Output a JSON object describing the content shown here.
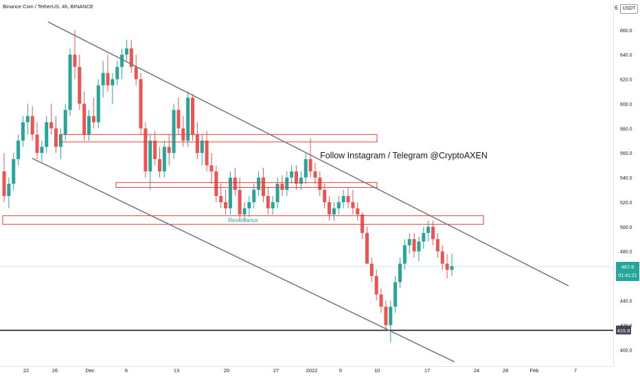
{
  "header": {
    "title": "Binance Coin / TetherUS, 4h, BINANCE",
    "currency": "USDT",
    "corner_glyph": "6"
  },
  "chart_data": {
    "type": "candlestick",
    "y_axis": {
      "ticks": [
        "400.0",
        "420.0",
        "440.0",
        "460.0",
        "480.0",
        "500.0",
        "520.0",
        "540.0",
        "560.0",
        "580.0",
        "600.0",
        "620.0",
        "640.0",
        "660.0"
      ],
      "range": [
        389,
        666
      ]
    },
    "x_axis": {
      "ticks": [
        "22",
        "26",
        "Dec",
        "6",
        "13",
        "20",
        "27",
        "2022",
        "5",
        "10",
        "17",
        "24",
        "28",
        "Feb",
        "7"
      ]
    },
    "annotation_text": "Follow Instagram / Telegram @CryptoAXEN",
    "zone_label": "Ressistance",
    "zones": [
      {
        "from": 569,
        "to": 575
      },
      {
        "from": 532,
        "to": 536
      },
      {
        "from": 502,
        "to": 509
      }
    ],
    "horizontal_level": 415.8,
    "trend_lines": [
      {
        "from": [
          "23 Nov",
          670
        ],
        "to": [
          "24 Jan",
          447
        ]
      },
      {
        "from": [
          "26 Nov",
          552
        ],
        "to": [
          "15 Jan",
          400
        ]
      }
    ],
    "price_labels": {
      "last_price": "467.6",
      "countdown": "01:41:21",
      "level_label": "415.8"
    },
    "candles_ohlc_approx": [
      [
        545,
        560,
        520,
        525
      ],
      [
        525,
        540,
        515,
        535
      ],
      [
        535,
        560,
        530,
        555
      ],
      [
        555,
        575,
        550,
        570
      ],
      [
        570,
        590,
        565,
        585
      ],
      [
        585,
        600,
        575,
        590
      ],
      [
        590,
        598,
        570,
        575
      ],
      [
        575,
        585,
        555,
        560
      ],
      [
        560,
        570,
        553,
        565
      ],
      [
        565,
        590,
        560,
        585
      ],
      [
        585,
        600,
        575,
        580
      ],
      [
        580,
        590,
        560,
        565
      ],
      [
        565,
        580,
        555,
        575
      ],
      [
        575,
        600,
        570,
        595
      ],
      [
        595,
        645,
        590,
        640
      ],
      [
        640,
        660,
        620,
        630
      ],
      [
        630,
        640,
        595,
        600
      ],
      [
        600,
        610,
        570,
        575
      ],
      [
        575,
        595,
        570,
        590
      ],
      [
        590,
        605,
        580,
        585
      ],
      [
        585,
        620,
        580,
        615
      ],
      [
        615,
        635,
        605,
        625
      ],
      [
        625,
        640,
        610,
        615
      ],
      [
        615,
        625,
        600,
        620
      ],
      [
        620,
        635,
        615,
        630
      ],
      [
        630,
        645,
        620,
        640
      ],
      [
        640,
        652,
        635,
        645
      ],
      [
        645,
        652,
        625,
        630
      ],
      [
        630,
        640,
        615,
        620
      ],
      [
        620,
        625,
        575,
        580
      ],
      [
        580,
        585,
        540,
        545
      ],
      [
        545,
        575,
        530,
        570
      ],
      [
        570,
        578,
        550,
        555
      ],
      [
        555,
        565,
        540,
        545
      ],
      [
        545,
        570,
        540,
        565
      ],
      [
        565,
        575,
        550,
        560
      ],
      [
        560,
        600,
        555,
        595
      ],
      [
        595,
        605,
        575,
        580
      ],
      [
        580,
        590,
        565,
        570
      ],
      [
        570,
        610,
        565,
        605
      ],
      [
        605,
        608,
        570,
        575
      ],
      [
        575,
        585,
        555,
        560
      ],
      [
        560,
        575,
        550,
        570
      ],
      [
        570,
        578,
        545,
        550
      ],
      [
        550,
        560,
        535,
        545
      ],
      [
        545,
        550,
        520,
        525
      ],
      [
        525,
        535,
        515,
        520
      ],
      [
        520,
        530,
        510,
        515
      ],
      [
        515,
        545,
        510,
        540
      ],
      [
        540,
        548,
        525,
        530
      ],
      [
        530,
        540,
        505,
        510
      ],
      [
        510,
        520,
        505,
        515
      ],
      [
        515,
        525,
        508,
        520
      ],
      [
        520,
        535,
        515,
        530
      ],
      [
        530,
        545,
        525,
        540
      ],
      [
        540,
        548,
        520,
        525
      ],
      [
        525,
        532,
        510,
        515
      ],
      [
        515,
        525,
        510,
        520
      ],
      [
        520,
        540,
        515,
        535
      ],
      [
        535,
        542,
        525,
        530
      ],
      [
        530,
        545,
        525,
        540
      ],
      [
        540,
        550,
        535,
        545
      ],
      [
        545,
        550,
        530,
        535
      ],
      [
        535,
        545,
        530,
        540
      ],
      [
        540,
        560,
        535,
        555
      ],
      [
        555,
        572,
        540,
        545
      ],
      [
        545,
        552,
        535,
        540
      ],
      [
        540,
        545,
        525,
        530
      ],
      [
        530,
        535,
        515,
        520
      ],
      [
        520,
        525,
        505,
        510
      ],
      [
        510,
        520,
        505,
        515
      ],
      [
        515,
        525,
        510,
        520
      ],
      [
        520,
        530,
        515,
        525
      ],
      [
        525,
        532,
        515,
        520
      ],
      [
        520,
        530,
        510,
        515
      ],
      [
        515,
        520,
        505,
        510
      ],
      [
        510,
        512,
        490,
        495
      ],
      [
        495,
        500,
        470,
        470
      ],
      [
        470,
        475,
        455,
        460
      ],
      [
        460,
        465,
        440,
        445
      ],
      [
        445,
        450,
        430,
        435
      ],
      [
        435,
        440,
        415,
        420
      ],
      [
        420,
        440,
        406,
        435
      ],
      [
        435,
        460,
        430,
        455
      ],
      [
        455,
        475,
        450,
        470
      ],
      [
        470,
        490,
        465,
        485
      ],
      [
        485,
        495,
        478,
        490
      ],
      [
        490,
        495,
        475,
        480
      ],
      [
        480,
        492,
        472,
        488
      ],
      [
        488,
        500,
        482,
        495
      ],
      [
        495,
        505,
        488,
        500
      ],
      [
        500,
        505,
        485,
        490
      ],
      [
        490,
        495,
        475,
        480
      ],
      [
        480,
        485,
        465,
        470
      ],
      [
        470,
        478,
        458,
        465
      ],
      [
        465,
        478,
        460,
        468
      ]
    ]
  }
}
